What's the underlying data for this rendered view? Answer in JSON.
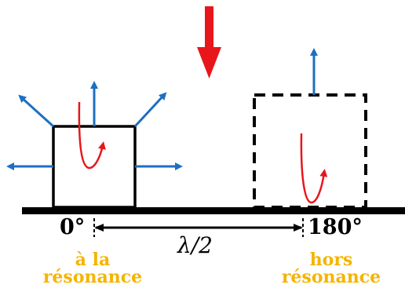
{
  "labels": {
    "angle_left": "0°",
    "angle_right": "180°",
    "distance": "λ/2",
    "left_caption_line1": "à la",
    "left_caption_line2": "résonance",
    "right_caption_line1": "hors",
    "right_caption_line2": "résonance"
  },
  "colors": {
    "caption": "#f5b400",
    "emission_arrows": "#1e6fc0",
    "incident_arrow": "#e8161b",
    "current_loop": "#e8161b",
    "outline": "#000000"
  },
  "icons": {
    "incident": "down-arrow-icon",
    "emission": "arrow-icon",
    "current": "curved-arrow-icon"
  }
}
